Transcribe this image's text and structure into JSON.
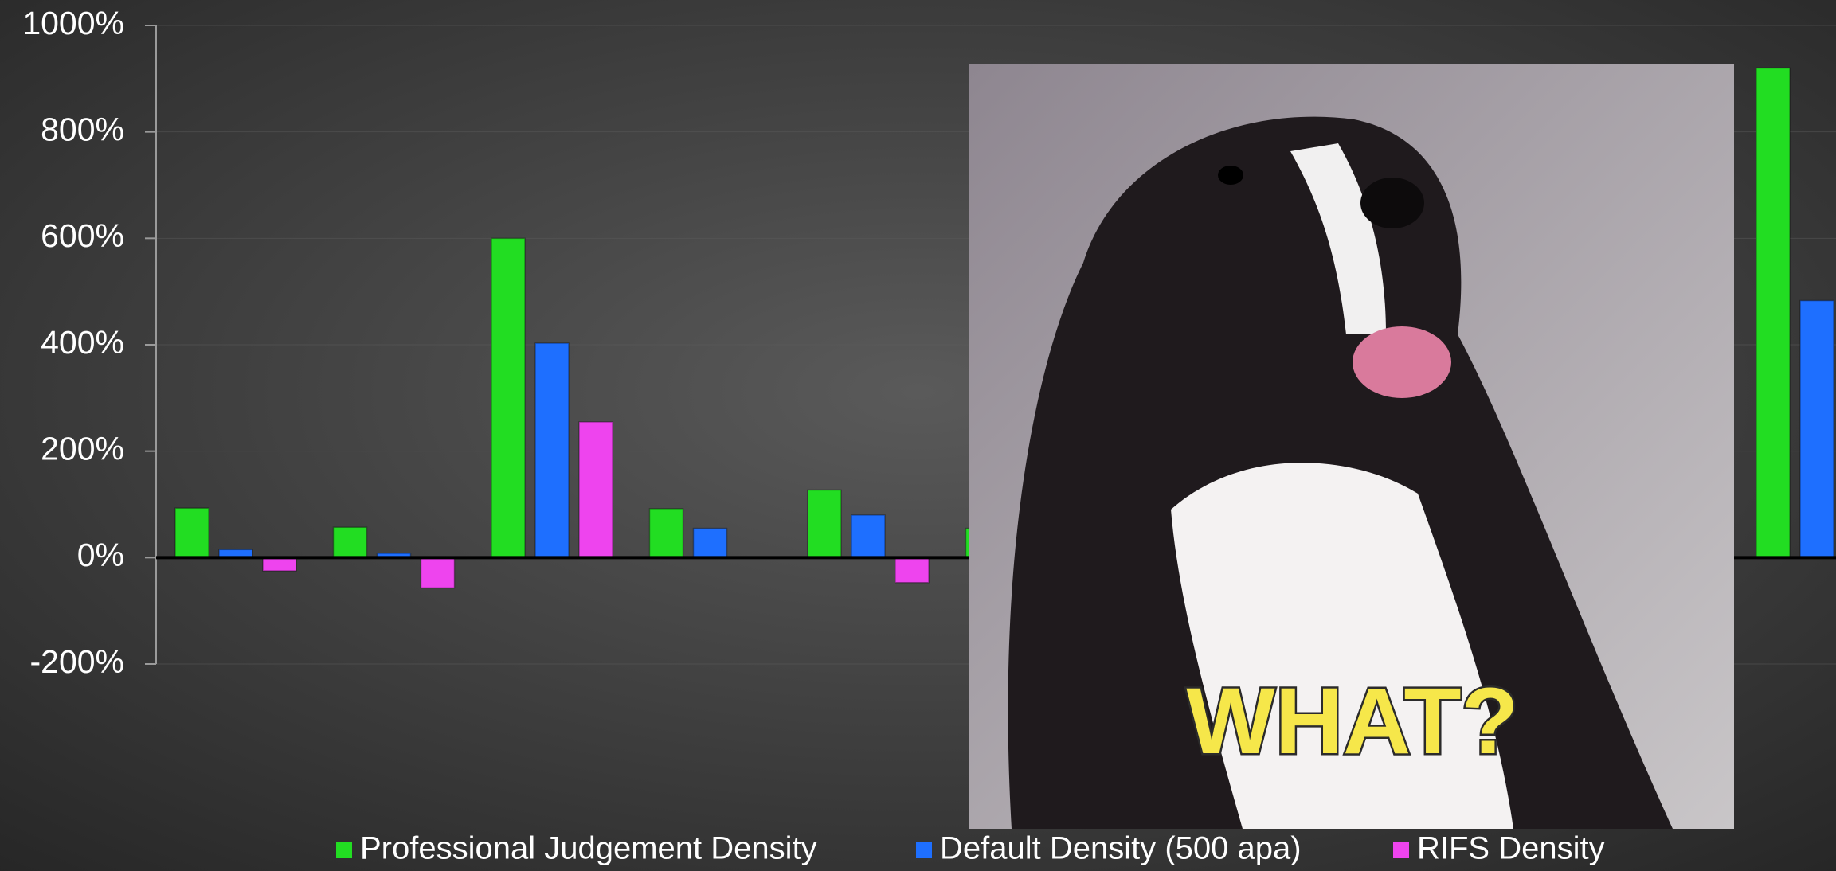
{
  "chart_data": {
    "type": "bar",
    "categories": [
      null,
      null,
      null,
      null,
      null,
      null,
      null,
      null,
      null,
      null,
      null
    ],
    "series": [
      {
        "name": "Professional Judgement Density",
        "color": "#22dd22",
        "values": [
          93,
          57,
          600,
          92,
          127,
          55,
          null,
          null,
          null,
          null,
          920
        ]
      },
      {
        "name": "Default Density (500 apa)",
        "color": "#1e6fff",
        "values": [
          15,
          8,
          403,
          55,
          80,
          null,
          null,
          null,
          null,
          null,
          483
        ]
      },
      {
        "name": "RIFS Density",
        "color": "#ee44ee",
        "values": [
          -25,
          -57,
          255,
          null,
          -47,
          null,
          null,
          null,
          null,
          null,
          null
        ]
      }
    ],
    "ylim": [
      -200,
      1000
    ],
    "yticks": [
      {
        "value": -200,
        "label": "-200%"
      },
      {
        "value": 0,
        "label": "0%"
      },
      {
        "value": 200,
        "label": "200%"
      },
      {
        "value": 400,
        "label": "400%"
      },
      {
        "value": 600,
        "label": "600%"
      },
      {
        "value": 800,
        "label": "800%"
      },
      {
        "value": 1000,
        "label": "1000%"
      }
    ],
    "grid": true,
    "legend": "bottom"
  },
  "overlay": {
    "caption": "WHAT?"
  }
}
